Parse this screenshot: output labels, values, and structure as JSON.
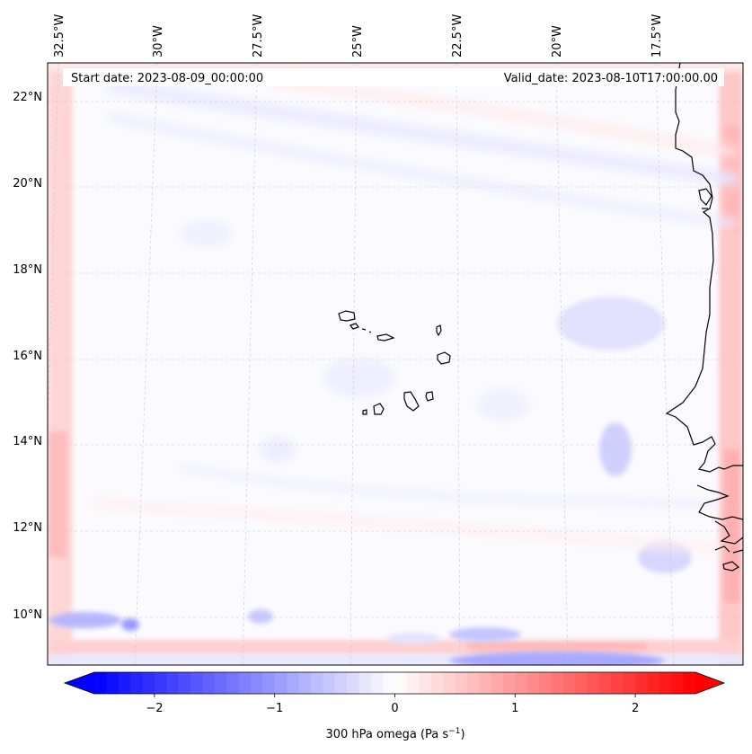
{
  "map": {
    "start_date": "Start date: 2023-08-09_00:00:00",
    "valid_date": "Valid_date: 2023-08-10T17:00:00.00",
    "lon_labels": [
      "32.5°W",
      "30°W",
      "27.5°W",
      "25°W",
      "22.5°W",
      "20°W",
      "17.5°W"
    ],
    "lat_labels": [
      "22°N",
      "20°N",
      "18°N",
      "16°N",
      "14°N",
      "12°N",
      "10°N"
    ],
    "colorbar": {
      "ticks": [
        "−2",
        "−1",
        "0",
        "1",
        "2"
      ],
      "tick_values": [
        -2,
        -1,
        0,
        1,
        2
      ],
      "range": [
        -2.5,
        2.5
      ],
      "label_main": "300 hPa omega (Pa s",
      "label_sup": "−1",
      "label_end": ")",
      "cmap": "bwr",
      "color_min": "#0000ff",
      "color_mid": "#ffffff",
      "color_max": "#ff0000"
    }
  }
}
